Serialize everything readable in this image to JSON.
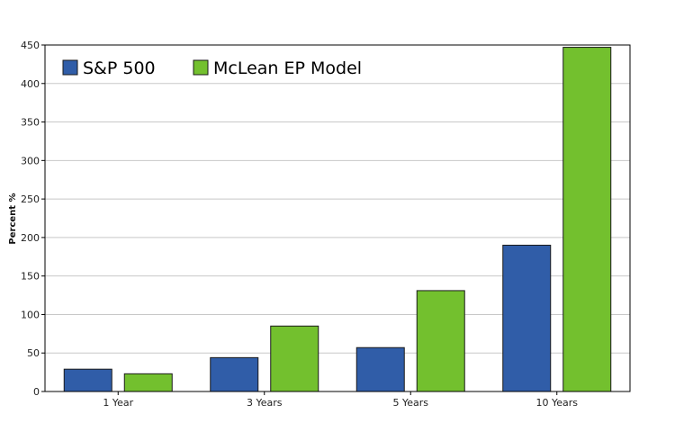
{
  "chart_data": {
    "type": "bar",
    "title": "",
    "xlabel": "",
    "ylabel": "Percent %",
    "categories": [
      "1 Year",
      "3 Years",
      "5 Years",
      "10 Years"
    ],
    "series": [
      {
        "name": "S&P 500",
        "color": "#305da8",
        "values": [
          29,
          44,
          57,
          190
        ]
      },
      {
        "name": "McLean EP Model",
        "color": "#73c02e",
        "values": [
          23,
          85,
          131,
          447
        ]
      }
    ],
    "ylim": [
      0,
      450
    ],
    "yticks": [
      0,
      50,
      100,
      150,
      200,
      250,
      300,
      350,
      400,
      450
    ],
    "grid": true,
    "legend_position": "top-left"
  }
}
